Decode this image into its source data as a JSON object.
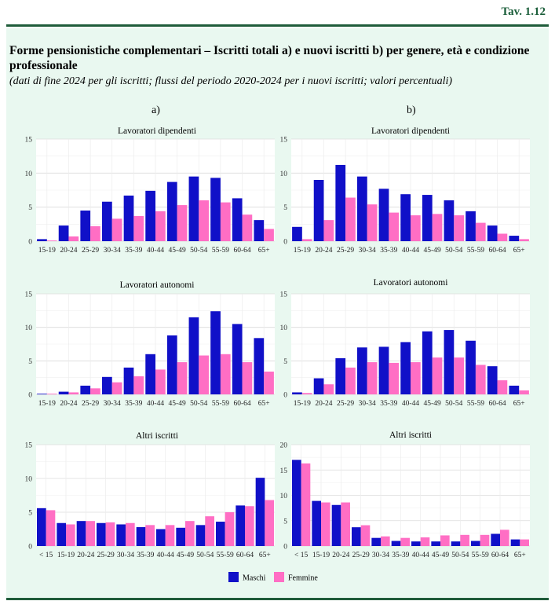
{
  "header": {
    "table_id": "Tav. 1.12",
    "title": "Forme pensionistiche complementari – Iscritti totali a) e nuovi iscritti b) per genere, età e condizione professionale",
    "subtitle": "(dati di fine 2024 per gli iscritti; flussi del periodo 2020-2024 per i nuovi iscritti; valori percentuali)",
    "col_a": "a)",
    "col_b": "b)"
  },
  "legend": {
    "maschi": "Maschi",
    "femmine": "Femmine"
  },
  "colors": {
    "maschi": "#1010c8",
    "femmine": "#ff6ec4",
    "panel": "#e9f8f0",
    "rule": "#1f5c3a"
  },
  "chart_data": [
    {
      "id": "a1",
      "type": "bar",
      "title": "Lavoratori dipendenti",
      "categories": [
        "15-19",
        "20-24",
        "25-29",
        "30-34",
        "35-39",
        "40-44",
        "45-49",
        "50-54",
        "55-59",
        "60-64",
        "65+"
      ],
      "ylim": [
        0,
        15
      ],
      "yticks": [
        0,
        5,
        10,
        15
      ],
      "series": [
        {
          "name": "Maschi",
          "values": [
            0.3,
            2.3,
            4.5,
            5.8,
            6.7,
            7.4,
            8.7,
            9.5,
            9.3,
            6.3,
            3.1
          ]
        },
        {
          "name": "Femmine",
          "values": [
            0.1,
            0.7,
            2.2,
            3.3,
            3.7,
            4.4,
            5.3,
            6.0,
            5.7,
            3.9,
            1.8
          ]
        }
      ]
    },
    {
      "id": "b1",
      "type": "bar",
      "title": "Lavoratori dipendenti",
      "categories": [
        "15-19",
        "20-24",
        "25-29",
        "30-34",
        "35-39",
        "40-44",
        "45-49",
        "50-54",
        "55-59",
        "60-64",
        "65+"
      ],
      "ylim": [
        0,
        15
      ],
      "yticks": [
        0,
        5,
        10,
        15
      ],
      "series": [
        {
          "name": "Maschi",
          "values": [
            2.1,
            9.0,
            11.2,
            9.5,
            7.7,
            6.9,
            6.8,
            6.0,
            4.4,
            2.3,
            0.8
          ]
        },
        {
          "name": "Femmine",
          "values": [
            0.3,
            3.1,
            6.4,
            5.4,
            4.2,
            3.8,
            4.0,
            3.8,
            2.7,
            1.1,
            0.3
          ]
        }
      ]
    },
    {
      "id": "a2",
      "type": "bar",
      "title": "Lavoratori autonomi",
      "categories": [
        "15-19",
        "20-24",
        "25-29",
        "30-34",
        "35-39",
        "40-44",
        "45-49",
        "50-54",
        "55-59",
        "60-64",
        "65+"
      ],
      "ylim": [
        0,
        15
      ],
      "yticks": [
        0,
        5,
        10,
        15
      ],
      "series": [
        {
          "name": "Maschi",
          "values": [
            0.1,
            0.4,
            1.3,
            2.6,
            4.0,
            6.0,
            8.8,
            11.5,
            12.4,
            10.5,
            8.4
          ]
        },
        {
          "name": "Femmine",
          "values": [
            0.1,
            0.3,
            0.9,
            1.8,
            2.7,
            3.7,
            4.8,
            5.8,
            6.0,
            4.8,
            3.4
          ]
        }
      ]
    },
    {
      "id": "b2",
      "type": "bar",
      "title": "Lavoratori autonomi",
      "categories": [
        "15-19",
        "20-24",
        "25-29",
        "30-34",
        "35-39",
        "40-44",
        "45-49",
        "50-54",
        "55-59",
        "60-64",
        "65+"
      ],
      "ylim": [
        0,
        15
      ],
      "yticks": [
        0,
        5,
        10,
        15
      ],
      "series": [
        {
          "name": "Maschi",
          "values": [
            0.3,
            2.4,
            5.4,
            7.0,
            7.1,
            7.8,
            9.4,
            9.6,
            8.0,
            4.2,
            1.3
          ]
        },
        {
          "name": "Femmine",
          "values": [
            0.2,
            1.5,
            4.0,
            4.8,
            4.7,
            4.8,
            5.5,
            5.5,
            4.4,
            2.1,
            0.6
          ]
        }
      ]
    },
    {
      "id": "a3",
      "type": "bar",
      "title": "Altri iscritti",
      "categories": [
        "< 15",
        "15-19",
        "20-24",
        "25-29",
        "30-34",
        "35-39",
        "40-44",
        "45-49",
        "50-54",
        "55-59",
        "60-64",
        "65+"
      ],
      "ylim": [
        0,
        15
      ],
      "yticks": [
        0,
        5,
        10,
        15
      ],
      "series": [
        {
          "name": "Maschi",
          "values": [
            5.6,
            3.4,
            3.7,
            3.4,
            3.2,
            2.8,
            2.5,
            2.7,
            3.1,
            3.6,
            6.0,
            10.1
          ]
        },
        {
          "name": "Femmine",
          "values": [
            5.3,
            3.2,
            3.7,
            3.5,
            3.4,
            3.1,
            3.1,
            3.7,
            4.4,
            5.0,
            5.9,
            6.8
          ]
        }
      ]
    },
    {
      "id": "b3",
      "type": "bar",
      "title": "Altri iscritti",
      "categories": [
        "< 15",
        "15-19",
        "20-24",
        "25-29",
        "30-34",
        "35-39",
        "40-44",
        "45-49",
        "50-54",
        "55-59",
        "60-64",
        "65+"
      ],
      "ylim": [
        0,
        20
      ],
      "yticks": [
        0,
        5,
        10,
        15,
        20
      ],
      "series": [
        {
          "name": "Maschi",
          "values": [
            17.0,
            8.9,
            8.1,
            3.7,
            1.6,
            1.0,
            0.9,
            0.9,
            0.9,
            1.0,
            2.4,
            1.3
          ]
        },
        {
          "name": "Femmine",
          "values": [
            16.3,
            8.6,
            8.6,
            4.1,
            1.9,
            1.6,
            1.7,
            2.1,
            2.2,
            2.2,
            3.2,
            1.3
          ]
        }
      ]
    }
  ]
}
